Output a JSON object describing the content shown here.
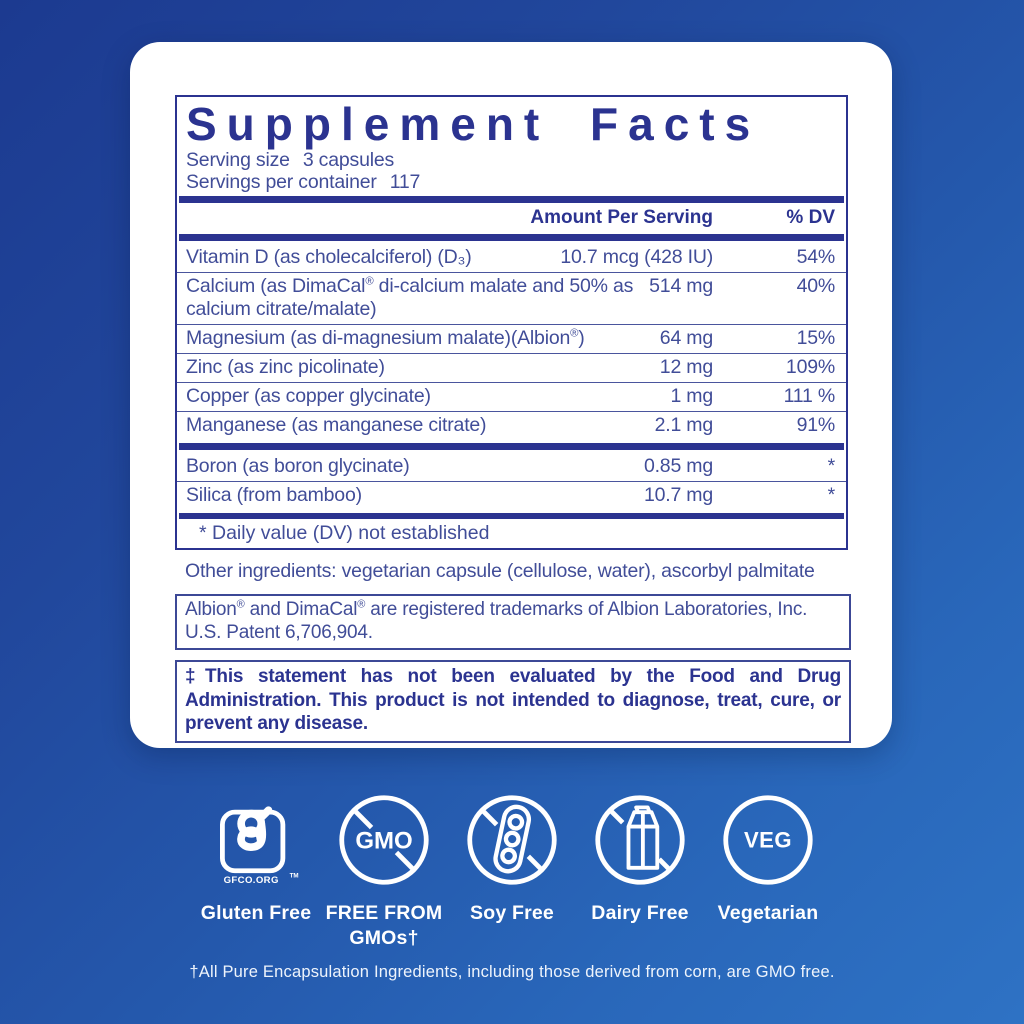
{
  "colors": {
    "navy": "#2b3390",
    "body_text": "#414d98",
    "bg_dark": "#1c3a90",
    "bg_light": "#2e72c4",
    "white": "#ffffff"
  },
  "panel": {
    "title": "Supplement Facts",
    "serving_size_label": "Serving size",
    "serving_size_value": "3 capsules",
    "servings_per_container_label": "Servings per container",
    "servings_per_container_value": "117",
    "amount_header": "Amount Per Serving",
    "dv_header": "% DV",
    "rows_main": [
      {
        "name": "Vitamin D (as cholecalciferol) (D₃)",
        "amount": "10.7 mcg (428 IU)",
        "dv": "54%"
      },
      {
        "name": "Calcium (as DimaCal® di-calcium malate and 50% as calcium citrate/malate)",
        "amount": "514 mg",
        "dv": "40%"
      },
      {
        "name": "Magnesium (as di-magnesium malate)(Albion®)",
        "amount": "64 mg",
        "dv": "15%"
      },
      {
        "name": "Zinc (as zinc picolinate)",
        "amount": "12 mg",
        "dv": "109%"
      },
      {
        "name": "Copper (as copper glycinate)",
        "amount": "1 mg",
        "dv": "111 %"
      },
      {
        "name": "Manganese (as manganese citrate)",
        "amount": "2.1 mg",
        "dv": "91%"
      }
    ],
    "rows_secondary": [
      {
        "name": "Boron (as boron glycinate)",
        "amount": "0.85 mg",
        "dv": "*"
      },
      {
        "name": "Silica (from bamboo)",
        "amount": "10.7 mg",
        "dv": "*"
      }
    ],
    "footnote": "* Daily value (DV) not established"
  },
  "other_ingredients": "Other ingredients: vegetarian capsule (cellulose, water), ascorbyl palmitate",
  "trademark_note": "Albion® and DimaCal® are registered trademarks of Albion Laboratories, Inc. U.S. Patent 6,706,904.",
  "fda_disclaimer": "‡This statement has not been evaluated by the Food and Drug Administration. This product is not intended to diagnose, treat, cure, or prevent any disease.",
  "badges": [
    {
      "icon": "gfco-gluten-free-icon",
      "icon_text": "GFCO.ORG",
      "tm": "TM",
      "label": "Gluten Free"
    },
    {
      "icon": "no-gmo-icon",
      "icon_text": "GMO",
      "label": "FREE FROM GMOs†"
    },
    {
      "icon": "no-soy-icon",
      "icon_text": "",
      "label": "Soy Free"
    },
    {
      "icon": "no-dairy-icon",
      "icon_text": "",
      "label": "Dairy Free"
    },
    {
      "icon": "veg-icon",
      "icon_text": "VEG",
      "label": "Vegetarian"
    }
  ],
  "bottom_note": "†All Pure Encapsulation Ingredients, including those derived from corn, are GMO free."
}
